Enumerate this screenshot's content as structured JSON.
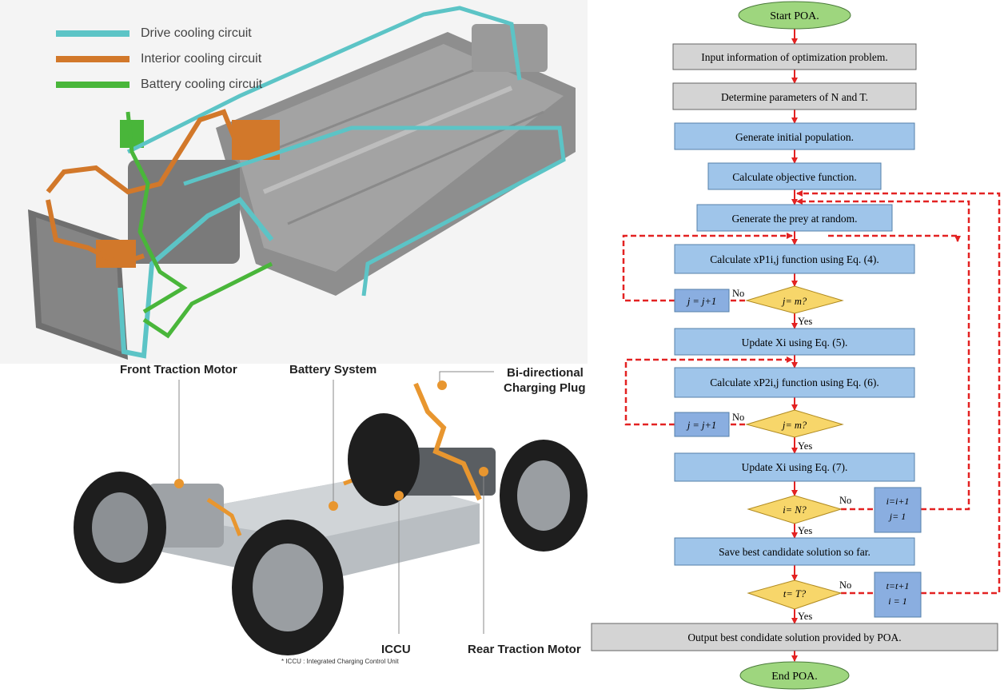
{
  "cooling": {
    "legend": [
      {
        "label": "Drive cooling circuit",
        "color": "#5cc4c6"
      },
      {
        "label": "Interior cooling circuit",
        "color": "#d2782a"
      },
      {
        "label": "Battery cooling circuit",
        "color": "#49b63a"
      }
    ]
  },
  "chassis": {
    "labels": {
      "front_motor": "Front Traction Motor",
      "battery": "Battery System",
      "plug_line1": "Bi-directional",
      "plug_line2": "Charging Plug",
      "iccu": "ICCU",
      "rear_motor": "Rear Traction Motor"
    },
    "footnote": "* ICCU : Integrated Charging Control Unit",
    "accent": "#e8962f"
  },
  "flowchart": {
    "start": "Start POA.",
    "input": "Input information of optimization problem.",
    "params": "Determine parameters of N and T.",
    "init": "Generate initial population.",
    "objective": "Calculate objective function.",
    "prey": "Generate the prey at random.",
    "calc1": "Calculate xP1i,j function using Eq. (4).",
    "cond1": "j= m?",
    "inc1": "j = j+1",
    "upd1": "Update Xi using Eq. (5).",
    "calc2": "Calculate xP2i,j function using Eq. (6).",
    "cond2": "j= m?",
    "inc2": "j = j+1",
    "upd2": "Update Xi using Eq. (7).",
    "cond3": "i= N?",
    "inc3_1": "i=i+1",
    "inc3_2": "j= 1",
    "save": "Save best candidate solution so far.",
    "cond4": "t= T?",
    "inc4_1": "t=t+1",
    "inc4_2": "i = 1",
    "output": "Output best condidate solution provided by POA.",
    "end": "End POA.",
    "no": "No",
    "yes": "Yes",
    "colors": {
      "terminal": "#9ed67e",
      "gray_box": "#d4d4d4",
      "blue_box": "#9fc5ea",
      "diamond": "#f7d66a",
      "arrow": "#e32222"
    }
  }
}
